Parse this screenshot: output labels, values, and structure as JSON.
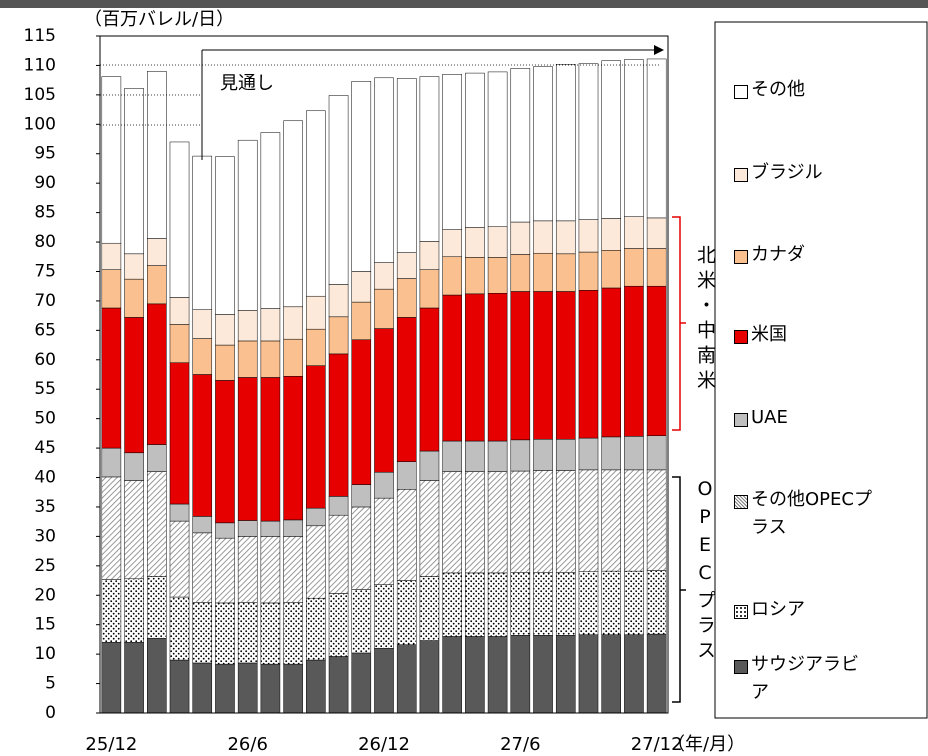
{
  "chart_data": {
    "type": "stacked_bar",
    "y_label": "（百万バレル/日）",
    "x_label": "（年/月）",
    "annotation": "見通し",
    "group_labels": [
      "北米・中南米",
      "OPECプラス"
    ],
    "categories": [
      "25/12",
      null,
      null,
      null,
      null,
      null,
      "26/6",
      null,
      null,
      null,
      null,
      null,
      "26/12",
      null,
      null,
      null,
      null,
      null,
      "27/6",
      null,
      null,
      null,
      null,
      null,
      "27/12"
    ],
    "ylim": [
      0,
      115
    ],
    "yticks": [
      0,
      5,
      10,
      15,
      20,
      25,
      30,
      35,
      40,
      45,
      50,
      55,
      60,
      65,
      70,
      75,
      80,
      85,
      90,
      95,
      100,
      105,
      110,
      115
    ],
    "series": [
      {
        "name": "サウジアラビア",
        "color": "#595959",
        "values": [
          12,
          12,
          12.7,
          9,
          8.5,
          8.3,
          8.5,
          8.3,
          8.3,
          9,
          9.6,
          10.2,
          11,
          11.6,
          12.3,
          13,
          13,
          13,
          13.2,
          13.2,
          13.2,
          13.3,
          13.3,
          13.3,
          13.4
        ]
      },
      {
        "name": "ロシア",
        "color": "#000000",
        "pattern": "dots",
        "values": [
          10.7,
          10.8,
          10.5,
          10.7,
          10.3,
          10.4,
          10.3,
          10.4,
          10.5,
          10.5,
          10.7,
          10.8,
          10.8,
          10.9,
          10.9,
          10.8,
          10.8,
          10.8,
          10.7,
          10.7,
          10.7,
          10.7,
          10.8,
          10.8,
          10.8
        ]
      },
      {
        "name": "その他OPECプラス",
        "color": "#808080",
        "pattern": "hatch",
        "values": [
          17.4,
          16.7,
          17.8,
          12.9,
          11.8,
          11.0,
          11.2,
          11.3,
          11.2,
          12.3,
          13.3,
          14.0,
          14.7,
          15.5,
          16.3,
          17.2,
          17.2,
          17.2,
          17.2,
          17.3,
          17.3,
          17.3,
          17.2,
          17.2,
          17.1
        ]
      },
      {
        "name": "UAE",
        "color": "#bfbfbf",
        "values": [
          4.9,
          4.7,
          4.6,
          2.9,
          2.8,
          2.6,
          2.7,
          2.6,
          2.8,
          3.0,
          3.2,
          3.8,
          4.4,
          4.7,
          5.0,
          5.2,
          5.2,
          5.2,
          5.3,
          5.3,
          5.3,
          5.4,
          5.6,
          5.7,
          5.8
        ]
      },
      {
        "name": "米国",
        "color": "#e60000",
        "values": [
          23.8,
          23.0,
          23.9,
          24.0,
          24.1,
          24.2,
          24.3,
          24.4,
          24.4,
          24.2,
          24.2,
          24.6,
          24.4,
          24.5,
          24.3,
          24.8,
          25.0,
          25.1,
          25.2,
          25.1,
          25.1,
          25.1,
          25.3,
          25.5,
          25.4
        ]
      },
      {
        "name": "カナダ",
        "color": "#fac090",
        "values": [
          6.5,
          6.5,
          6.5,
          6.5,
          6.1,
          6.0,
          6.2,
          6.2,
          6.3,
          6.2,
          6.3,
          6.4,
          6.7,
          6.6,
          6.5,
          6.5,
          6.2,
          6.1,
          6.3,
          6.5,
          6.4,
          6.5,
          6.4,
          6.4,
          6.4
        ]
      },
      {
        "name": "ブラジル",
        "color": "#fde9d9",
        "values": [
          4.5,
          4.3,
          4.6,
          4.6,
          4.9,
          5.2,
          5.2,
          5.5,
          5.5,
          5.6,
          5.5,
          5.2,
          4.5,
          4.4,
          4.8,
          4.6,
          5.1,
          5.2,
          5.5,
          5.5,
          5.6,
          5.5,
          5.4,
          5.4,
          5.2
        ]
      },
      {
        "name": "その他",
        "color": "#ffffff",
        "values": [
          28.3,
          28.1,
          28.4,
          26.4,
          26.1,
          26.8,
          28.9,
          29.9,
          31.6,
          31.5,
          32.1,
          32.3,
          31.4,
          29.6,
          28.0,
          26.4,
          26.2,
          26.3,
          26.1,
          26.2,
          26.6,
          26.5,
          26.8,
          26.7,
          27.0
        ]
      }
    ]
  }
}
